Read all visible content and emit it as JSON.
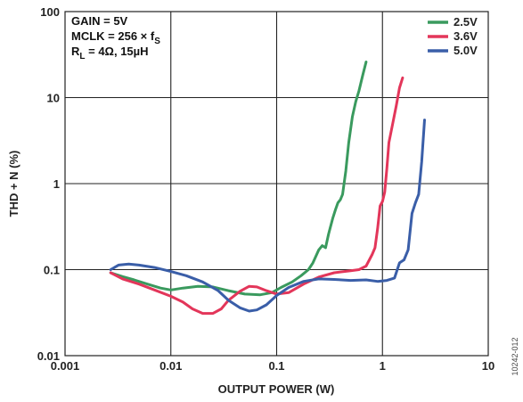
{
  "chart_data": {
    "type": "line",
    "xlabel": "OUTPUT POWER (W)",
    "ylabel": "THD + N (%)",
    "x_scale": "log",
    "y_scale": "log",
    "xlim": [
      0.001,
      10
    ],
    "ylim": [
      0.01,
      100
    ],
    "x_tick_labels": [
      "0.001",
      "0.01",
      "0.1",
      "1",
      "10"
    ],
    "y_tick_labels": [
      "0.01",
      "0.1",
      "1",
      "10",
      "100"
    ],
    "grid": true,
    "legend_position": "top-right",
    "annotations": {
      "gain": "GAIN = 5V",
      "mclk": "MCLK = 256 × f",
      "mclk_sub": "S",
      "rl": "R",
      "rl_sub": "L",
      "rl_rest": " = 4Ω, 15µH"
    },
    "figure_id": "10242-012",
    "series": [
      {
        "name": "2.5V",
        "color": "#3a9a5e",
        "points": [
          [
            0.0027,
            0.092
          ],
          [
            0.0035,
            0.083
          ],
          [
            0.0045,
            0.076
          ],
          [
            0.006,
            0.068
          ],
          [
            0.008,
            0.061
          ],
          [
            0.01,
            0.058
          ],
          [
            0.013,
            0.061
          ],
          [
            0.018,
            0.064
          ],
          [
            0.025,
            0.063
          ],
          [
            0.035,
            0.057
          ],
          [
            0.05,
            0.052
          ],
          [
            0.07,
            0.051
          ],
          [
            0.09,
            0.054
          ],
          [
            0.11,
            0.062
          ],
          [
            0.14,
            0.072
          ],
          [
            0.17,
            0.085
          ],
          [
            0.2,
            0.1
          ],
          [
            0.22,
            0.12
          ],
          [
            0.25,
            0.17
          ],
          [
            0.27,
            0.19
          ],
          [
            0.29,
            0.18
          ],
          [
            0.31,
            0.26
          ],
          [
            0.34,
            0.4
          ],
          [
            0.36,
            0.5
          ],
          [
            0.38,
            0.6
          ],
          [
            0.4,
            0.65
          ],
          [
            0.42,
            0.75
          ],
          [
            0.45,
            1.4
          ],
          [
            0.48,
            3
          ],
          [
            0.52,
            6
          ],
          [
            0.56,
            9
          ],
          [
            0.6,
            12
          ],
          [
            0.65,
            18
          ],
          [
            0.7,
            26
          ]
        ]
      },
      {
        "name": "3.6V",
        "color": "#e3365a",
        "points": [
          [
            0.0027,
            0.092
          ],
          [
            0.0035,
            0.078
          ],
          [
            0.005,
            0.068
          ],
          [
            0.007,
            0.058
          ],
          [
            0.01,
            0.049
          ],
          [
            0.013,
            0.042
          ],
          [
            0.016,
            0.035
          ],
          [
            0.02,
            0.031
          ],
          [
            0.025,
            0.031
          ],
          [
            0.03,
            0.035
          ],
          [
            0.035,
            0.044
          ],
          [
            0.045,
            0.056
          ],
          [
            0.055,
            0.064
          ],
          [
            0.065,
            0.063
          ],
          [
            0.08,
            0.057
          ],
          [
            0.1,
            0.052
          ],
          [
            0.13,
            0.054
          ],
          [
            0.18,
            0.068
          ],
          [
            0.25,
            0.082
          ],
          [
            0.35,
            0.092
          ],
          [
            0.5,
            0.097
          ],
          [
            0.6,
            0.1
          ],
          [
            0.7,
            0.11
          ],
          [
            0.8,
            0.15
          ],
          [
            0.85,
            0.18
          ],
          [
            0.9,
            0.3
          ],
          [
            0.95,
            0.55
          ],
          [
            1.0,
            0.62
          ],
          [
            1.05,
            0.8
          ],
          [
            1.1,
            1.5
          ],
          [
            1.15,
            3
          ],
          [
            1.25,
            5
          ],
          [
            1.35,
            8
          ],
          [
            1.45,
            13
          ],
          [
            1.55,
            17
          ]
        ]
      },
      {
        "name": "5.0V",
        "color": "#3a5ea8",
        "points": [
          [
            0.0027,
            0.1
          ],
          [
            0.0032,
            0.113
          ],
          [
            0.004,
            0.116
          ],
          [
            0.005,
            0.113
          ],
          [
            0.007,
            0.106
          ],
          [
            0.01,
            0.095
          ],
          [
            0.014,
            0.085
          ],
          [
            0.02,
            0.072
          ],
          [
            0.028,
            0.057
          ],
          [
            0.035,
            0.044
          ],
          [
            0.045,
            0.036
          ],
          [
            0.055,
            0.033
          ],
          [
            0.065,
            0.034
          ],
          [
            0.08,
            0.039
          ],
          [
            0.1,
            0.05
          ],
          [
            0.13,
            0.062
          ],
          [
            0.18,
            0.073
          ],
          [
            0.25,
            0.078
          ],
          [
            0.35,
            0.077
          ],
          [
            0.5,
            0.075
          ],
          [
            0.7,
            0.076
          ],
          [
            0.9,
            0.073
          ],
          [
            1.1,
            0.075
          ],
          [
            1.3,
            0.08
          ],
          [
            1.45,
            0.12
          ],
          [
            1.6,
            0.13
          ],
          [
            1.75,
            0.17
          ],
          [
            1.9,
            0.45
          ],
          [
            2.05,
            0.6
          ],
          [
            2.2,
            0.75
          ],
          [
            2.35,
            1.8
          ],
          [
            2.5,
            5.5
          ]
        ]
      }
    ]
  }
}
